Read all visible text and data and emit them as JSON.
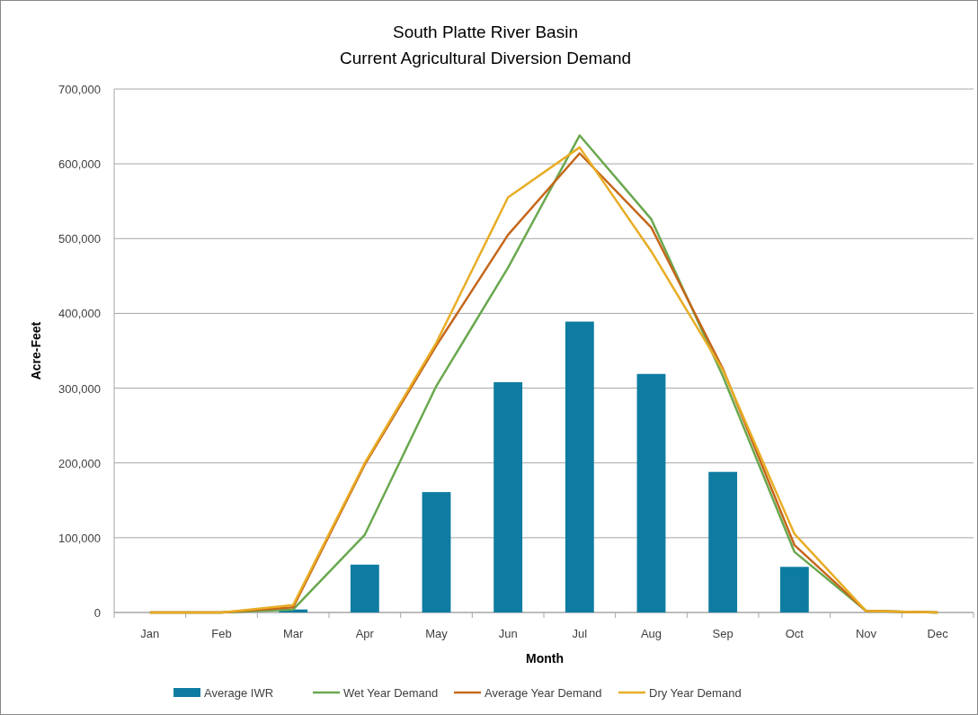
{
  "chart_data": {
    "type": "bar",
    "title": "South Platte River Basin\nCurrent Agricultural Diversion Demand",
    "xlabel": "Month",
    "ylabel": "Acre-Feet",
    "categories": [
      "Jan",
      "Feb",
      "Mar",
      "Apr",
      "May",
      "Jun",
      "Jul",
      "Aug",
      "Sep",
      "Oct",
      "Nov",
      "Dec"
    ],
    "series": [
      {
        "name": "Average IWR",
        "color": "#0e7ca1",
        "values": [
          0,
          0,
          4000,
          64000,
          161000,
          308000,
          389000,
          319000,
          188000,
          61000,
          null,
          0
        ]
      },
      {
        "name": "Wet Year Demand",
        "type": "line",
        "color": "#6aa84f",
        "values": [
          0,
          0,
          4000,
          104000,
          303000,
          461000,
          638000,
          526000,
          316000,
          81000,
          2000,
          0
        ]
      },
      {
        "name": "Average Year Demand",
        "type": "line",
        "color": "#c5661a",
        "values": [
          0,
          0,
          7000,
          198000,
          357000,
          505000,
          614000,
          515000,
          326000,
          90000,
          2000,
          0
        ]
      },
      {
        "name": "Dry Year Demand",
        "type": "line",
        "color": "#e8ad25",
        "values": [
          0,
          0,
          10000,
          200000,
          361000,
          555000,
          622000,
          483000,
          324000,
          105000,
          2000,
          0
        ]
      }
    ],
    "ylim": [
      0,
      700000
    ],
    "yticks": [
      {
        "value": 0,
        "label": "0"
      },
      {
        "value": 100000,
        "label": "100,000"
      },
      {
        "value": 200000,
        "label": "200,000"
      },
      {
        "value": 300000,
        "label": "300,000"
      },
      {
        "value": 400000,
        "label": "400,000"
      },
      {
        "value": 500000,
        "label": "500,000"
      },
      {
        "value": 600000,
        "label": "600,000"
      },
      {
        "value": 700000,
        "label": "700,000"
      }
    ],
    "grid": "y",
    "legend": "bottom",
    "marker": "none",
    "line_style": "solid"
  }
}
